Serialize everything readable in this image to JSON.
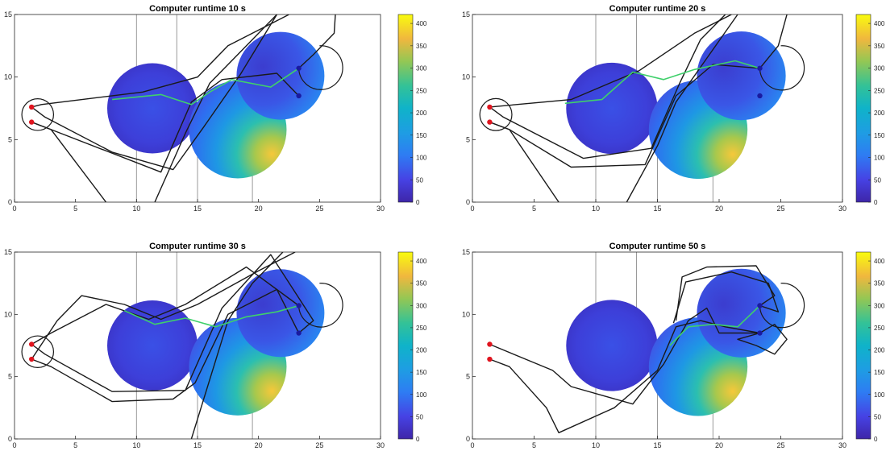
{
  "colors": {
    "trajectory": "#1a1a1a",
    "best_path": "#3fd06b",
    "start_marker": "#e0141e",
    "goal_marker": "#1a1aa0",
    "obstacle_line": "#9a9a9a",
    "axis": "#262626"
  },
  "chart_data": [
    {
      "type": "heatmap",
      "title": "Computer runtime 10 s",
      "xlim": [
        0,
        30
      ],
      "ylim": [
        0,
        15
      ],
      "xticks": [
        "0",
        "5",
        "10",
        "15",
        "20",
        "25",
        "30"
      ],
      "yticks": [
        "0",
        "5",
        "10",
        "15"
      ],
      "colorbar": {
        "range": [
          0,
          420
        ],
        "ticks": [
          "0",
          "50",
          "100",
          "150",
          "200",
          "250",
          "300",
          "350",
          "400"
        ]
      },
      "regions": [
        {
          "cx": 11.3,
          "cy": 7.5,
          "r": 3.7
        },
        {
          "cx": 18.3,
          "cy": 5.8,
          "r": 4.0
        },
        {
          "cx": 21.8,
          "cy": 10.1,
          "r": 3.6
        }
      ],
      "start_points": [
        {
          "x": 1.4,
          "y": 7.6
        },
        {
          "x": 1.4,
          "y": 6.4
        }
      ],
      "goal_points": [
        {
          "x": 23.3,
          "y": 10.7
        },
        {
          "x": 23.3,
          "y": 8.5
        }
      ],
      "trajectories": [
        [
          [
            1.4,
            7.6
          ],
          [
            2.2,
            7.8
          ],
          [
            10.5,
            8.8
          ],
          [
            15.0,
            10.0
          ],
          [
            17.5,
            12.5
          ],
          [
            22.5,
            15.0
          ]
        ],
        [
          [
            1.4,
            6.4
          ],
          [
            3.0,
            5.8
          ],
          [
            12.0,
            2.4
          ],
          [
            14.5,
            8.0
          ],
          [
            17.0,
            9.8
          ],
          [
            21.5,
            10.3
          ],
          [
            23.3,
            8.5
          ]
        ],
        [
          [
            1.4,
            6.4
          ],
          [
            3.0,
            5.8
          ],
          [
            7.5,
            0.0
          ]
        ],
        [
          [
            1.4,
            7.6
          ],
          [
            2.5,
            6.8
          ],
          [
            8.0,
            4.0
          ],
          [
            13.0,
            2.6
          ],
          [
            15.5,
            6.0
          ],
          [
            18.5,
            10.2
          ],
          [
            21.5,
            15.0
          ]
        ],
        [
          [
            11.5,
            0.0
          ],
          [
            14.0,
            5.5
          ],
          [
            16.0,
            9.5
          ],
          [
            18.5,
            12.0
          ],
          [
            21.5,
            15.0
          ]
        ],
        [
          [
            23.3,
            10.7
          ],
          [
            24.5,
            11.8
          ],
          [
            26.2,
            13.5
          ],
          [
            26.3,
            15.0
          ]
        ]
      ],
      "best_path": [
        [
          8.0,
          8.2
        ],
        [
          12.0,
          8.6
        ],
        [
          14.5,
          7.8
        ],
        [
          16.0,
          8.8
        ],
        [
          17.8,
          9.8
        ],
        [
          21.0,
          9.2
        ],
        [
          23.3,
          10.7
        ]
      ]
    },
    {
      "type": "heatmap",
      "title": "Computer runtime 20 s",
      "xlim": [
        0,
        30
      ],
      "ylim": [
        0,
        15
      ],
      "xticks": [
        "0",
        "5",
        "10",
        "15",
        "20",
        "25",
        "30"
      ],
      "yticks": [
        "0",
        "5",
        "10",
        "15"
      ],
      "colorbar": {
        "range": [
          0,
          420
        ],
        "ticks": [
          "0",
          "50",
          "100",
          "150",
          "200",
          "250",
          "300",
          "350",
          "400"
        ]
      },
      "regions": [
        {
          "cx": 11.3,
          "cy": 7.5,
          "r": 3.7
        },
        {
          "cx": 18.3,
          "cy": 5.8,
          "r": 4.0
        },
        {
          "cx": 21.8,
          "cy": 10.1,
          "r": 3.6
        }
      ],
      "start_points": [
        {
          "x": 1.4,
          "y": 7.6
        },
        {
          "x": 1.4,
          "y": 6.4
        }
      ],
      "goal_points": [
        {
          "x": 23.3,
          "y": 10.7
        },
        {
          "x": 23.3,
          "y": 8.5
        }
      ],
      "trajectories": [
        [
          [
            1.4,
            7.6
          ],
          [
            8.0,
            8.2
          ],
          [
            13.5,
            10.5
          ],
          [
            18.0,
            13.5
          ],
          [
            21.0,
            15.0
          ]
        ],
        [
          [
            1.4,
            6.4
          ],
          [
            3.0,
            5.8
          ],
          [
            8.0,
            2.8
          ],
          [
            14.0,
            3.0
          ],
          [
            16.5,
            8.5
          ],
          [
            19.5,
            11.0
          ],
          [
            23.3,
            10.7
          ]
        ],
        [
          [
            1.4,
            6.4
          ],
          [
            3.0,
            5.8
          ],
          [
            7.0,
            0.0
          ]
        ],
        [
          [
            1.4,
            7.6
          ],
          [
            2.5,
            6.8
          ],
          [
            9.0,
            3.5
          ],
          [
            14.5,
            4.3
          ],
          [
            16.8,
            9.5
          ],
          [
            18.5,
            13.0
          ],
          [
            20.5,
            15.0
          ]
        ],
        [
          [
            12.5,
            0.0
          ],
          [
            15.0,
            4.5
          ],
          [
            16.5,
            8.0
          ],
          [
            19.0,
            11.5
          ],
          [
            21.5,
            15.0
          ]
        ],
        [
          [
            23.3,
            10.7
          ],
          [
            24.8,
            12.5
          ],
          [
            25.5,
            15.0
          ]
        ]
      ],
      "best_path": [
        [
          7.5,
          7.9
        ],
        [
          10.5,
          8.2
        ],
        [
          13.0,
          10.4
        ],
        [
          15.5,
          9.8
        ],
        [
          18.0,
          10.6
        ],
        [
          21.3,
          11.3
        ],
        [
          23.3,
          10.7
        ]
      ]
    },
    {
      "type": "heatmap",
      "title": "Computer runtime 30 s",
      "xlim": [
        0,
        30
      ],
      "ylim": [
        0,
        15
      ],
      "xticks": [
        "0",
        "5",
        "10",
        "15",
        "20",
        "25",
        "30"
      ],
      "yticks": [
        "0",
        "5",
        "10",
        "15"
      ],
      "colorbar": {
        "range": [
          0,
          420
        ],
        "ticks": [
          "0",
          "50",
          "100",
          "150",
          "200",
          "250",
          "300",
          "350",
          "400"
        ]
      },
      "regions": [
        {
          "cx": 11.3,
          "cy": 7.5,
          "r": 3.7
        },
        {
          "cx": 18.3,
          "cy": 5.8,
          "r": 4.0
        },
        {
          "cx": 21.8,
          "cy": 10.1,
          "r": 3.6
        }
      ],
      "start_points": [
        {
          "x": 1.4,
          "y": 7.6
        },
        {
          "x": 1.4,
          "y": 6.4
        }
      ],
      "goal_points": [
        {
          "x": 23.3,
          "y": 10.7
        },
        {
          "x": 23.3,
          "y": 8.5
        }
      ],
      "trajectories": [
        [
          [
            1.4,
            6.4
          ],
          [
            3.5,
            9.5
          ],
          [
            5.5,
            11.5
          ],
          [
            9.0,
            10.8
          ],
          [
            12.0,
            9.6
          ],
          [
            15.0,
            10.8
          ],
          [
            20.0,
            13.5
          ],
          [
            23.0,
            15.0
          ]
        ],
        [
          [
            1.4,
            7.6
          ],
          [
            3.0,
            8.5
          ],
          [
            7.5,
            10.8
          ],
          [
            11.0,
            9.6
          ],
          [
            14.0,
            10.8
          ],
          [
            19.0,
            13.8
          ],
          [
            23.3,
            10.7
          ]
        ],
        [
          [
            1.4,
            6.4
          ],
          [
            3.0,
            5.8
          ],
          [
            8.0,
            3.0
          ],
          [
            13.0,
            3.2
          ],
          [
            14.8,
            4.5
          ],
          [
            17.5,
            10.0
          ],
          [
            21.5,
            12.0
          ],
          [
            23.3,
            8.5
          ]
        ],
        [
          [
            1.4,
            7.6
          ],
          [
            2.5,
            6.8
          ],
          [
            8.0,
            3.8
          ],
          [
            14.0,
            3.9
          ],
          [
            17.0,
            10.5
          ],
          [
            21.0,
            14.8
          ],
          [
            24.5,
            9.5
          ],
          [
            23.3,
            8.5
          ]
        ],
        [
          [
            14.5,
            0.0
          ],
          [
            17.5,
            9.5
          ],
          [
            19.5,
            12.5
          ],
          [
            22.0,
            15.0
          ]
        ]
      ],
      "best_path": [
        [
          9.0,
          10.3
        ],
        [
          11.5,
          9.2
        ],
        [
          14.0,
          9.7
        ],
        [
          16.5,
          9.0
        ],
        [
          19.0,
          9.8
        ],
        [
          21.5,
          10.2
        ],
        [
          23.3,
          10.7
        ]
      ]
    },
    {
      "type": "heatmap",
      "title": "Computer runtime 50 s",
      "xlim": [
        0,
        30
      ],
      "ylim": [
        0,
        15
      ],
      "xticks": [
        "0",
        "5",
        "10",
        "15",
        "20",
        "25",
        "30"
      ],
      "yticks": [
        "0",
        "5",
        "10",
        "15"
      ],
      "colorbar": {
        "range": [
          0,
          420
        ],
        "ticks": [
          "0",
          "50",
          "100",
          "150",
          "200",
          "250",
          "300",
          "350",
          "400"
        ]
      },
      "regions": [
        {
          "cx": 11.3,
          "cy": 7.5,
          "r": 3.7
        },
        {
          "cx": 18.3,
          "cy": 5.8,
          "r": 4.0
        },
        {
          "cx": 21.8,
          "cy": 10.1,
          "r": 3.6
        }
      ],
      "start_points": [
        {
          "x": 1.4,
          "y": 7.6
        },
        {
          "x": 1.4,
          "y": 6.4
        }
      ],
      "goal_points": [
        {
          "x": 23.3,
          "y": 10.7
        },
        {
          "x": 23.3,
          "y": 8.5
        }
      ],
      "trajectories": [
        [
          [
            1.4,
            7.6
          ],
          [
            6.5,
            5.5
          ],
          [
            8.0,
            4.2
          ],
          [
            13.0,
            2.8
          ],
          [
            15.5,
            6.0
          ],
          [
            17.5,
            9.5
          ],
          [
            19.0,
            10.5
          ],
          [
            20.0,
            8.5
          ],
          [
            23.3,
            8.5
          ]
        ],
        [
          [
            1.4,
            6.4
          ],
          [
            3.0,
            5.8
          ],
          [
            6.0,
            2.5
          ],
          [
            7.0,
            0.5
          ],
          [
            11.5,
            2.5
          ],
          [
            15.0,
            5.5
          ],
          [
            16.5,
            9.0
          ],
          [
            18.5,
            9.5
          ],
          [
            20.5,
            9.0
          ],
          [
            23.3,
            8.5
          ]
        ],
        [
          [
            16.5,
            9.5
          ],
          [
            17.0,
            13.0
          ],
          [
            19.0,
            13.8
          ],
          [
            23.0,
            13.9
          ],
          [
            24.5,
            11.5
          ],
          [
            23.3,
            10.7
          ]
        ],
        [
          [
            16.3,
            9.3
          ],
          [
            17.3,
            12.6
          ],
          [
            21.0,
            13.4
          ],
          [
            24.0,
            12.5
          ],
          [
            24.8,
            10.2
          ],
          [
            23.3,
            10.7
          ]
        ],
        [
          [
            23.3,
            8.5
          ],
          [
            24.5,
            9.2
          ],
          [
            25.5,
            8.0
          ],
          [
            24.5,
            6.8
          ],
          [
            23.0,
            7.5
          ],
          [
            21.5,
            8.0
          ],
          [
            23.3,
            8.5
          ]
        ]
      ],
      "best_path": [
        [
          16.0,
          7.5
        ],
        [
          17.5,
          9.0
        ],
        [
          19.5,
          9.2
        ],
        [
          21.5,
          9.0
        ],
        [
          23.3,
          10.7
        ]
      ]
    }
  ]
}
